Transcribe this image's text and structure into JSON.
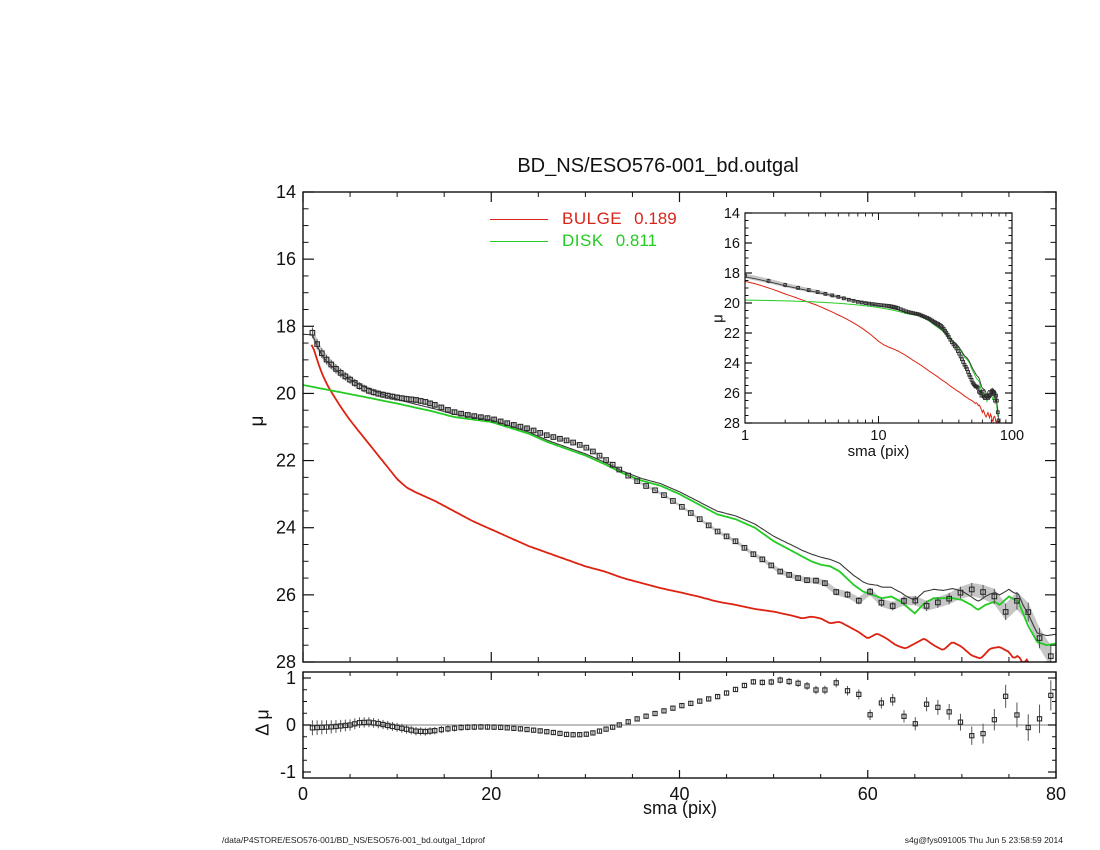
{
  "title": "BD_NS/ESO576-001_bd.outgal",
  "legend": [
    {
      "name": "BULGE",
      "fraction": "0.189",
      "color": "#d8251a"
    },
    {
      "name": "DISK",
      "fraction": "0.811",
      "color": "#22cc22"
    }
  ],
  "footer": {
    "left": "/data/P4STORE/ESO576-001/BD_NS/ESO576-001_bd.outgal_1dprof",
    "right": "s4g@fys091005  Thu Jun  5 23:58:59 2014"
  },
  "chart_data": {
    "type": "line",
    "description": "Galaxy 1D surface-brightness profile with bulge/disk decomposition, residual panel and log-radius inset",
    "axes": {
      "x_label": "sma (pix)",
      "x_range": [
        0,
        80
      ],
      "x_major_ticks": [
        0,
        20,
        40,
        60,
        80
      ],
      "x_minor_step": 5,
      "y_label": "μ",
      "y_range": [
        14,
        28
      ],
      "y_inverted": true,
      "y_major_ticks": [
        14,
        16,
        18,
        20,
        22,
        24,
        26,
        28
      ],
      "y_minor_step": 0.5,
      "residual_label": "Δ μ",
      "residual_range": [
        -1.13,
        1.13
      ],
      "residual_major_ticks": [
        -1,
        0,
        1
      ],
      "residual_minor_step": 0.25,
      "inset_x_scale": "log",
      "inset_x_range": [
        1,
        100
      ],
      "inset_x_major_ticks": [
        1,
        10,
        100
      ],
      "grid": false
    },
    "colors": {
      "bulge": "#dd2211",
      "disk": "#22cc22",
      "total_model": "#3a3a3a",
      "data_marker": "#2b2b2b",
      "error_band": "#b8b8b8",
      "error_bar": "#555555",
      "zero_line": "#999999",
      "frame": "#111111"
    },
    "series": {
      "bulge_mu": [
        [
          1,
          18.55
        ],
        [
          1.5,
          19.0
        ],
        [
          2,
          19.4
        ],
        [
          2.5,
          19.7
        ],
        [
          3,
          19.95
        ],
        [
          4,
          20.4
        ],
        [
          5,
          20.8
        ],
        [
          6,
          21.15
        ],
        [
          7,
          21.5
        ],
        [
          8,
          21.85
        ],
        [
          9,
          22.2
        ],
        [
          10,
          22.55
        ],
        [
          11,
          22.8
        ],
        [
          12,
          22.95
        ],
        [
          14,
          23.2
        ],
        [
          16,
          23.5
        ],
        [
          18,
          23.8
        ],
        [
          20,
          24.05
        ],
        [
          22,
          24.3
        ],
        [
          24,
          24.55
        ],
        [
          26,
          24.75
        ],
        [
          28,
          24.95
        ],
        [
          30,
          25.15
        ],
        [
          32,
          25.3
        ],
        [
          34,
          25.5
        ],
        [
          36,
          25.65
        ],
        [
          38,
          25.8
        ],
        [
          40,
          25.92
        ],
        [
          42,
          26.05
        ],
        [
          44,
          26.2
        ],
        [
          46,
          26.3
        ],
        [
          48,
          26.42
        ],
        [
          50,
          26.5
        ],
        [
          52,
          26.62
        ],
        [
          53,
          26.7
        ],
        [
          54,
          26.65
        ],
        [
          55,
          26.7
        ],
        [
          56,
          26.85
        ],
        [
          57,
          26.8
        ],
        [
          58,
          26.95
        ],
        [
          59,
          27.1
        ],
        [
          60,
          27.3
        ],
        [
          61,
          27.15
        ],
        [
          62,
          27.3
        ],
        [
          63,
          27.5
        ],
        [
          64,
          27.6
        ],
        [
          65,
          27.45
        ],
        [
          66,
          27.3
        ],
        [
          67,
          27.5
        ],
        [
          68,
          27.65
        ],
        [
          69,
          27.4
        ],
        [
          70,
          27.55
        ],
        [
          71,
          27.8
        ],
        [
          72,
          27.9
        ],
        [
          73,
          27.6
        ],
        [
          74,
          27.55
        ],
        [
          75,
          27.7
        ],
        [
          75.5,
          27.9
        ],
        [
          76,
          27.8
        ],
        [
          76.5,
          28.05
        ],
        [
          77,
          27.9
        ],
        [
          77.5,
          28.4
        ],
        [
          78,
          28.8
        ]
      ],
      "disk_mu": [
        [
          0,
          19.75
        ],
        [
          5,
          20.02
        ],
        [
          10,
          20.3
        ],
        [
          14,
          20.55
        ],
        [
          16,
          20.7
        ],
        [
          20,
          20.85
        ],
        [
          24,
          21.2
        ],
        [
          26,
          21.45
        ],
        [
          28,
          21.65
        ],
        [
          30,
          21.85
        ],
        [
          32,
          22.1
        ],
        [
          34,
          22.38
        ],
        [
          36,
          22.6
        ],
        [
          38,
          22.75
        ],
        [
          40,
          23.0
        ],
        [
          42,
          23.3
        ],
        [
          44,
          23.6
        ],
        [
          46,
          23.75
        ],
        [
          48,
          24.0
        ],
        [
          50,
          24.4
        ],
        [
          52,
          24.7
        ],
        [
          54,
          25.0
        ],
        [
          55,
          25.1
        ],
        [
          56,
          25.15
        ],
        [
          57,
          25.3
        ],
        [
          58.5,
          25.7
        ],
        [
          59.5,
          25.9
        ],
        [
          60.5,
          26.0
        ],
        [
          61.5,
          26.1
        ],
        [
          62.5,
          26.05
        ],
        [
          63.5,
          26.2
        ],
        [
          65,
          26.55
        ],
        [
          66,
          26.25
        ],
        [
          67,
          26.1
        ],
        [
          68,
          26.1
        ],
        [
          69,
          26.1
        ],
        [
          70,
          26.15
        ],
        [
          71,
          26.3
        ],
        [
          71.7,
          26.45
        ],
        [
          72.5,
          26.3
        ],
        [
          73.5,
          26.2
        ],
        [
          74,
          26.3
        ],
        [
          75,
          26.05
        ],
        [
          76,
          26.2
        ],
        [
          77,
          26.9
        ],
        [
          78,
          27.4
        ],
        [
          79,
          27.5
        ],
        [
          80,
          27.45
        ]
      ],
      "residual_mu": [
        [
          1,
          -0.06
        ],
        [
          3,
          -0.04
        ],
        [
          5,
          0.0
        ],
        [
          6,
          0.05
        ],
        [
          7,
          0.06
        ],
        [
          8,
          0.03
        ],
        [
          9,
          -0.01
        ],
        [
          10,
          -0.05
        ],
        [
          11,
          -0.09
        ],
        [
          12,
          -0.13
        ],
        [
          13,
          -0.14
        ],
        [
          14,
          -0.12
        ],
        [
          15,
          -0.09
        ],
        [
          17,
          -0.05
        ],
        [
          19,
          -0.04
        ],
        [
          21,
          -0.05
        ],
        [
          23,
          -0.08
        ],
        [
          25,
          -0.12
        ],
        [
          27,
          -0.17
        ],
        [
          28,
          -0.2
        ],
        [
          29,
          -0.21
        ],
        [
          30,
          -0.2
        ],
        [
          31,
          -0.16
        ],
        [
          32,
          -0.1
        ],
        [
          33,
          -0.04
        ],
        [
          34,
          0.03
        ],
        [
          35,
          0.1
        ],
        [
          36,
          0.16
        ],
        [
          37,
          0.22
        ],
        [
          38,
          0.28
        ],
        [
          39,
          0.34
        ],
        [
          40,
          0.4
        ],
        [
          41,
          0.45
        ],
        [
          42,
          0.5
        ],
        [
          43,
          0.55
        ],
        [
          44,
          0.6
        ],
        [
          45,
          0.68
        ],
        [
          46,
          0.76
        ],
        [
          47,
          0.85
        ],
        [
          48,
          0.93
        ],
        [
          49,
          0.9
        ],
        [
          50,
          0.92
        ],
        [
          51,
          0.97
        ],
        [
          52,
          0.9
        ],
        [
          53,
          0.88
        ],
        [
          54,
          0.79
        ],
        [
          55,
          0.7
        ],
        [
          56,
          0.8
        ],
        [
          56.8,
          0.92
        ],
        [
          57.9,
          0.72
        ],
        [
          59,
          0.67
        ],
        [
          60.3,
          0.2
        ],
        [
          61.5,
          0.48
        ],
        [
          62.6,
          0.55
        ],
        [
          63.9,
          0.17
        ],
        [
          65.1,
          0.02
        ],
        [
          66.6,
          0.57
        ],
        [
          68,
          0.25
        ],
        [
          69.1,
          0.3
        ],
        [
          70.7,
          -0.21
        ],
        [
          71.9,
          -0.27
        ],
        [
          73.6,
          0.15
        ],
        [
          74.9,
          0.72
        ],
        [
          76.4,
          -0.08
        ],
        [
          77.9,
          -0.02
        ],
        [
          79.4,
          0.63
        ]
      ],
      "error_mu": [
        [
          1,
          0.16
        ],
        [
          3,
          0.14
        ],
        [
          5,
          0.12
        ],
        [
          8,
          0.1
        ],
        [
          12,
          0.09
        ],
        [
          16,
          0.07
        ],
        [
          20,
          0.06
        ],
        [
          25,
          0.05
        ],
        [
          30,
          0.04
        ],
        [
          40,
          0.04
        ],
        [
          45,
          0.05
        ],
        [
          50,
          0.07
        ],
        [
          55,
          0.09
        ],
        [
          60,
          0.11
        ],
        [
          65,
          0.14
        ],
        [
          70,
          0.18
        ],
        [
          75,
          0.25
        ],
        [
          80,
          0.33
        ]
      ]
    },
    "sampling": {
      "start": 1,
      "segments": [
        [
          14,
          0.5
        ],
        [
          33,
          0.7
        ],
        [
          55,
          0.95
        ],
        [
          79.9,
          1.2
        ]
      ]
    }
  }
}
